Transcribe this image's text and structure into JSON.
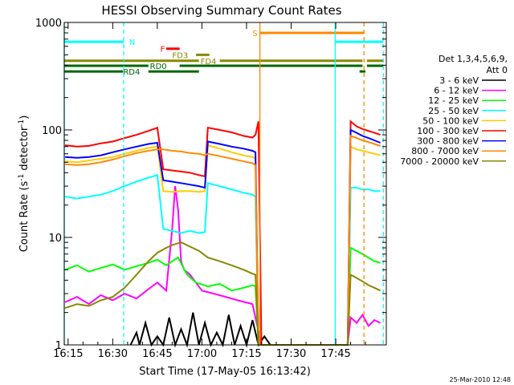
{
  "chart_data": {
    "type": "line",
    "title": "HESSI Observing Summary Count Rates",
    "xlabel": "Start Time (17-May-05 16:13:42)",
    "ylabel": "Count Rate (s",
    "ylabel_sup": "-1",
    "ylabel_end": " detector",
    "ylabel_sup2": "-1",
    "ylabel_close": ")",
    "footer_date": "25-Mar-2010 12:48",
    "x_ticks": [
      "16:15",
      "16:30",
      "16:45",
      "17:00",
      "17:15",
      "17:30",
      "17:45"
    ],
    "y_ticks": [
      "1",
      "10",
      "100",
      "1000"
    ],
    "yscale": "log",
    "ylim": [
      1,
      1000
    ],
    "xlim_min": [
      13.7,
      122
    ],
    "legend_header": [
      "Det 1,3,4,5,6,9,",
      "Att 0"
    ],
    "series": [
      {
        "name": "3 - 6 keV",
        "color": "#000000",
        "points": [
          [
            36,
            1
          ],
          [
            38,
            1.3
          ],
          [
            39,
            1
          ],
          [
            41,
            1.6
          ],
          [
            43,
            1
          ],
          [
            45,
            1.2
          ],
          [
            47,
            1
          ],
          [
            49,
            1.8
          ],
          [
            51,
            1
          ],
          [
            53,
            1.4
          ],
          [
            55,
            1
          ],
          [
            57,
            2.0
          ],
          [
            59,
            1
          ],
          [
            61,
            1.6
          ],
          [
            63,
            1
          ],
          [
            65,
            1.3
          ],
          [
            67,
            1
          ],
          [
            69,
            1.9
          ],
          [
            71,
            1
          ],
          [
            73,
            1.5
          ],
          [
            75,
            1
          ],
          [
            77,
            1.7
          ],
          [
            79,
            1
          ],
          [
            81,
            1.2
          ],
          [
            83,
            1
          ]
        ]
      },
      {
        "name": "6 - 12 keV",
        "color": "#ff00ff",
        "points": [
          [
            14,
            2.5
          ],
          [
            18,
            2.8
          ],
          [
            22,
            2.4
          ],
          [
            26,
            2.9
          ],
          [
            30,
            2.6
          ],
          [
            34,
            3.0
          ],
          [
            38,
            2.7
          ],
          [
            42,
            3.3
          ],
          [
            45,
            3.8
          ],
          [
            48,
            3.2
          ],
          [
            50,
            12
          ],
          [
            51,
            30
          ],
          [
            52,
            18
          ],
          [
            53,
            6
          ],
          [
            54,
            5
          ],
          [
            56,
            4.5
          ],
          [
            58,
            3.8
          ],
          [
            60,
            3.2
          ],
          [
            64,
            3.0
          ],
          [
            68,
            2.8
          ],
          [
            72,
            2.6
          ],
          [
            77,
            2.4
          ],
          [
            80,
            1
          ],
          [
            109,
            1
          ],
          [
            110,
            1.8
          ],
          [
            112,
            1.6
          ],
          [
            114,
            1.9
          ],
          [
            116,
            1.5
          ],
          [
            118,
            1.7
          ],
          [
            120,
            1.6
          ]
        ]
      },
      {
        "name": "12 - 25 keV",
        "color": "#00ff00",
        "points": [
          [
            14,
            5
          ],
          [
            18,
            5.5
          ],
          [
            22,
            4.8
          ],
          [
            26,
            5.2
          ],
          [
            30,
            5.6
          ],
          [
            34,
            5.0
          ],
          [
            38,
            5.4
          ],
          [
            42,
            5.8
          ],
          [
            45,
            6.2
          ],
          [
            48,
            5.5
          ],
          [
            50,
            6.0
          ],
          [
            52,
            6.5
          ],
          [
            55,
            4.5
          ],
          [
            58,
            3.8
          ],
          [
            62,
            3.5
          ],
          [
            66,
            3.7
          ],
          [
            70,
            3.2
          ],
          [
            74,
            3.4
          ],
          [
            77,
            3.6
          ],
          [
            78,
            3.5
          ],
          [
            79,
            1
          ],
          [
            109,
            1
          ],
          [
            110,
            8
          ],
          [
            112,
            7.5
          ],
          [
            114,
            7.0
          ],
          [
            116,
            6.5
          ],
          [
            118,
            6.0
          ],
          [
            120,
            5.8
          ]
        ]
      },
      {
        "name": "25 - 50 keV",
        "color": "#00ffff",
        "points": [
          [
            14,
            24
          ],
          [
            18,
            23
          ],
          [
            22,
            24
          ],
          [
            26,
            25
          ],
          [
            30,
            27
          ],
          [
            34,
            30
          ],
          [
            38,
            33
          ],
          [
            42,
            36
          ],
          [
            45,
            38
          ],
          [
            47,
            12
          ],
          [
            50,
            11.5
          ],
          [
            53,
            11.0
          ],
          [
            56,
            11.5
          ],
          [
            59,
            11.0
          ],
          [
            61,
            11.2
          ],
          [
            62,
            32
          ],
          [
            66,
            30
          ],
          [
            70,
            28
          ],
          [
            74,
            26
          ],
          [
            77,
            25
          ],
          [
            78,
            24
          ],
          [
            79,
            1
          ],
          [
            109,
            1
          ],
          [
            110,
            29
          ],
          [
            112,
            29
          ],
          [
            114,
            28
          ],
          [
            116,
            28
          ],
          [
            118,
            27
          ],
          [
            120,
            27
          ]
        ]
      },
      {
        "name": "50 - 100 keV",
        "color": "#ffcc00",
        "points": [
          [
            14,
            51
          ],
          [
            18,
            50
          ],
          [
            22,
            52
          ],
          [
            26,
            54
          ],
          [
            30,
            56
          ],
          [
            34,
            60
          ],
          [
            38,
            64
          ],
          [
            42,
            68
          ],
          [
            45,
            70
          ],
          [
            47,
            27
          ],
          [
            50,
            26.5
          ],
          [
            53,
            27
          ],
          [
            56,
            27
          ],
          [
            59,
            26.5
          ],
          [
            61,
            27
          ],
          [
            62,
            72
          ],
          [
            66,
            67
          ],
          [
            70,
            62
          ],
          [
            74,
            58
          ],
          [
            77,
            56
          ],
          [
            78,
            54
          ],
          [
            79,
            1
          ],
          [
            109,
            1
          ],
          [
            110,
            70
          ],
          [
            112,
            66
          ],
          [
            114,
            64
          ],
          [
            116,
            62
          ],
          [
            118,
            60
          ],
          [
            120,
            58
          ]
        ]
      },
      {
        "name": "100 - 300 keV",
        "color": "#ff0000",
        "points": [
          [
            14,
            72
          ],
          [
            18,
            70
          ],
          [
            22,
            71
          ],
          [
            26,
            75
          ],
          [
            30,
            78
          ],
          [
            34,
            84
          ],
          [
            38,
            90
          ],
          [
            42,
            98
          ],
          [
            45,
            105
          ],
          [
            47,
            43
          ],
          [
            50,
            42
          ],
          [
            53,
            41
          ],
          [
            56,
            40
          ],
          [
            59,
            38
          ],
          [
            61,
            37
          ],
          [
            62,
            105
          ],
          [
            66,
            100
          ],
          [
            70,
            95
          ],
          [
            74,
            88
          ],
          [
            77,
            85
          ],
          [
            78,
            90
          ],
          [
            79,
            120
          ],
          [
            80,
            1
          ],
          [
            109,
            1
          ],
          [
            110,
            120
          ],
          [
            112,
            108
          ],
          [
            114,
            102
          ],
          [
            116,
            98
          ],
          [
            118,
            94
          ],
          [
            120,
            90
          ]
        ]
      },
      {
        "name": "300 - 800 keV",
        "color": "#0000ff",
        "points": [
          [
            14,
            56
          ],
          [
            18,
            55
          ],
          [
            22,
            56
          ],
          [
            26,
            58
          ],
          [
            30,
            62
          ],
          [
            34,
            66
          ],
          [
            38,
            70
          ],
          [
            42,
            74
          ],
          [
            45,
            76
          ],
          [
            47,
            34
          ],
          [
            50,
            33
          ],
          [
            53,
            32
          ],
          [
            56,
            31
          ],
          [
            59,
            30
          ],
          [
            61,
            29
          ],
          [
            62,
            78
          ],
          [
            66,
            74
          ],
          [
            70,
            70
          ],
          [
            74,
            67
          ],
          [
            77,
            64
          ],
          [
            78,
            62
          ],
          [
            79,
            1
          ],
          [
            109,
            1
          ],
          [
            110,
            100
          ],
          [
            112,
            94
          ],
          [
            114,
            88
          ],
          [
            116,
            84
          ],
          [
            118,
            80
          ],
          [
            120,
            76
          ]
        ]
      },
      {
        "name": "800 - 7000 keV",
        "color": "#ff8800",
        "points": [
          [
            14,
            48
          ],
          [
            18,
            47
          ],
          [
            22,
            48
          ],
          [
            26,
            50
          ],
          [
            30,
            53
          ],
          [
            34,
            57
          ],
          [
            38,
            61
          ],
          [
            42,
            64
          ],
          [
            45,
            66
          ],
          [
            47,
            66
          ],
          [
            50,
            64
          ],
          [
            53,
            63
          ],
          [
            56,
            61
          ],
          [
            59,
            60
          ],
          [
            61,
            58
          ],
          [
            62,
            60
          ],
          [
            66,
            57
          ],
          [
            70,
            54
          ],
          [
            74,
            51
          ],
          [
            77,
            49
          ],
          [
            78,
            47
          ],
          [
            79,
            1
          ],
          [
            109,
            1
          ],
          [
            110,
            88
          ],
          [
            112,
            84
          ],
          [
            114,
            80
          ],
          [
            116,
            77
          ],
          [
            118,
            74
          ],
          [
            120,
            71
          ]
        ]
      },
      {
        "name": "7000 - 20000 keV",
        "color": "#888800",
        "points": [
          [
            14,
            2.2
          ],
          [
            18,
            2.4
          ],
          [
            22,
            2.3
          ],
          [
            26,
            2.6
          ],
          [
            30,
            2.8
          ],
          [
            34,
            3.4
          ],
          [
            38,
            4.5
          ],
          [
            42,
            6.0
          ],
          [
            45,
            7.2
          ],
          [
            48,
            8.0
          ],
          [
            50,
            8.5
          ],
          [
            53,
            9.0
          ],
          [
            56,
            8.2
          ],
          [
            59,
            7.5
          ],
          [
            62,
            6.5
          ],
          [
            66,
            6.0
          ],
          [
            70,
            5.5
          ],
          [
            74,
            5.0
          ],
          [
            77,
            4.6
          ],
          [
            78,
            4.5
          ],
          [
            79,
            1
          ],
          [
            109,
            1
          ],
          [
            110,
            4.5
          ],
          [
            112,
            4.2
          ],
          [
            114,
            3.9
          ],
          [
            116,
            3.6
          ],
          [
            118,
            3.4
          ],
          [
            120,
            3.2
          ]
        ]
      }
    ],
    "vertical_lines": [
      {
        "x": 13.7,
        "color": "#00ffff",
        "dash": false
      },
      {
        "x": 33.7,
        "color": "#00ffff",
        "dash": true
      },
      {
        "x": 79.5,
        "color": "#ff8800",
        "dash": false
      },
      {
        "x": 104.8,
        "color": "#00ffff",
        "dash": false
      },
      {
        "x": 114.5,
        "color": "#ff8800",
        "dash": true
      },
      {
        "x": 121.0,
        "color": "#00ffff",
        "dash": true
      }
    ],
    "flag_bars": [
      {
        "label": "N",
        "color": "#00ffff",
        "y": 660,
        "segments": [
          [
            13.7,
            33.7
          ],
          [
            104.8,
            121.0
          ]
        ],
        "label_x": 35.5
      },
      {
        "label": "S",
        "color": "#ff8800",
        "y": 800,
        "segments": [
          [
            79.5,
            114.5
          ]
        ],
        "label_x": 77.0
      },
      {
        "label": "F",
        "color": "#ff0000",
        "y": 570,
        "segments": [
          [
            48.0,
            52.5
          ]
        ],
        "label_x": 46.0
      },
      {
        "label": "FD3",
        "color": "#888800",
        "y": 500,
        "segments": [
          [
            58.0,
            62.5
          ]
        ],
        "label_x": 50.0
      },
      {
        "label": "FD4",
        "color": "#888800",
        "y": 440,
        "segments": [
          [
            13.7,
            59.0
          ],
          [
            66.0,
            114.0
          ],
          [
            115.5,
            121.0
          ]
        ],
        "label_x": 59.5
      },
      {
        "label": "RD0",
        "color": "#006600",
        "y": 395,
        "segments": [
          [
            13.7,
            42.0
          ],
          [
            52.5,
            114.0
          ],
          [
            115.5,
            121.0
          ]
        ],
        "label_x": 42.5
      },
      {
        "label": "RD4",
        "color": "#006600",
        "y": 350,
        "segments": [
          [
            13.7,
            33.5
          ],
          [
            42.0,
            59.0
          ],
          [
            113.0,
            115.0
          ]
        ],
        "label_x": 33.5
      }
    ]
  }
}
